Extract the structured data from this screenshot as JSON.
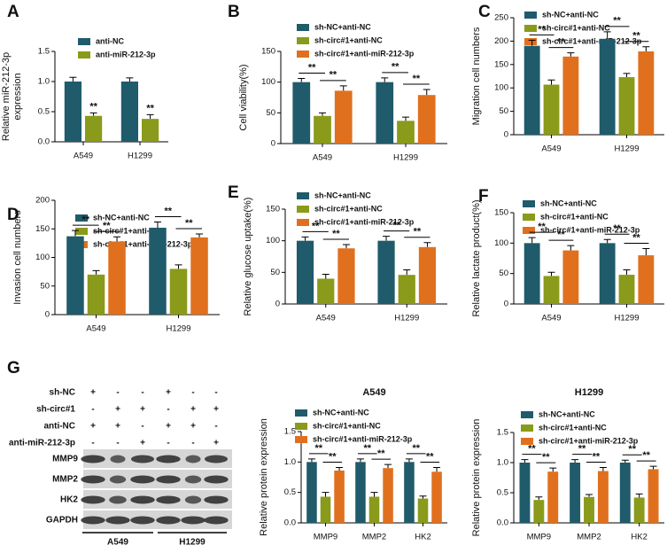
{
  "chart_data": [
    {
      "type": "bar",
      "panel_label": "A",
      "y_label": [
        "Relative miR-212-3p",
        "expression"
      ],
      "categories": [
        "A549",
        "H1299"
      ],
      "series": [
        {
          "name": "anti-NC",
          "color": "#1f5b6b",
          "values": [
            1.0,
            1.0
          ],
          "errors": [
            0.07,
            0.06
          ]
        },
        {
          "name": "anti-miR-212-3p",
          "color": "#8a9a1a",
          "values": [
            0.43,
            0.38
          ],
          "errors": [
            0.05,
            0.07
          ]
        }
      ],
      "ylim": [
        0,
        1.5
      ],
      "yticks": [
        {
          "value": 0,
          "label": "0.0"
        },
        {
          "value": 0.5,
          "label": "0.5"
        },
        {
          "value": 1,
          "label": "1.0"
        },
        {
          "value": 1.5,
          "label": "1.5"
        }
      ],
      "significance": [
        [
          "**"
        ],
        [
          "**"
        ]
      ]
    },
    {
      "type": "bar",
      "panel_label": "B",
      "y_label": [
        "Cell viability(%)"
      ],
      "categories": [
        "A549",
        "H1299"
      ],
      "series": [
        {
          "name": "sh-NC+anti-NC",
          "color": "#1f5b6b",
          "values": [
            100,
            100
          ],
          "errors": [
            6,
            7
          ]
        },
        {
          "name": "sh-circ#1+anti-NC",
          "color": "#8a9a1a",
          "values": [
            45,
            37
          ],
          "errors": [
            5,
            6
          ]
        },
        {
          "name": "sh-circ#1+anti-miR-212-3p",
          "color": "#e0701e",
          "values": [
            86,
            79
          ],
          "errors": [
            8,
            9
          ]
        }
      ],
      "ylim": [
        0,
        150
      ],
      "yticks": [
        0,
        50,
        100,
        150
      ],
      "significance": [
        [
          "**",
          "**"
        ],
        [
          "**",
          "**"
        ]
      ]
    },
    {
      "type": "bar",
      "panel_label": "C",
      "y_label": [
        "Migration cell numbers"
      ],
      "categories": [
        "A549",
        "H1299"
      ],
      "series": [
        {
          "name": "sh-NC+anti-NC",
          "color": "#1f5b6b",
          "values": [
            190,
            205
          ],
          "errors": [
            12,
            15
          ]
        },
        {
          "name": "sh-circ#1+anti-NC",
          "color": "#8a9a1a",
          "values": [
            107,
            123
          ],
          "errors": [
            10,
            8
          ]
        },
        {
          "name": "sh-circ#1+anti-miR-212-3p",
          "color": "#e0701e",
          "values": [
            167,
            178
          ],
          "errors": [
            8,
            10
          ]
        }
      ],
      "ylim": [
        0,
        250
      ],
      "yticks": [
        0,
        50,
        100,
        150,
        200,
        250
      ],
      "significance": [
        [
          "**",
          "**"
        ],
        [
          "**",
          "**"
        ]
      ]
    },
    {
      "type": "bar",
      "panel_label": "D",
      "y_label": [
        "Invasion cell numbers"
      ],
      "categories": [
        "A549",
        "H1299"
      ],
      "series": [
        {
          "name": "sh-NC+anti-NC",
          "color": "#1f5b6b",
          "values": [
            137,
            152
          ],
          "errors": [
            10,
            10
          ]
        },
        {
          "name": "sh-circ#1+anti-NC",
          "color": "#8a9a1a",
          "values": [
            70,
            80
          ],
          "errors": [
            7,
            7
          ]
        },
        {
          "name": "sh-circ#1+anti-miR-212-3p",
          "color": "#e0701e",
          "values": [
            128,
            135
          ],
          "errors": [
            8,
            6
          ]
        }
      ],
      "ylim": [
        0,
        200
      ],
      "yticks": [
        0,
        50,
        100,
        150,
        200
      ],
      "significance": [
        [
          "**",
          "**"
        ],
        [
          "**",
          "**"
        ]
      ]
    },
    {
      "type": "bar",
      "panel_label": "E",
      "y_label": [
        "Relative glucose uptake(%)"
      ],
      "categories": [
        "A549",
        "H1299"
      ],
      "series": [
        {
          "name": "sh-NC+anti-NC",
          "color": "#1f5b6b",
          "values": [
            100,
            100
          ],
          "errors": [
            6,
            7
          ]
        },
        {
          "name": "sh-circ#1+anti-NC",
          "color": "#8a9a1a",
          "values": [
            40,
            46
          ],
          "errors": [
            7,
            8
          ]
        },
        {
          "name": "sh-circ#1+anti-miR-212-3p",
          "color": "#e0701e",
          "values": [
            88,
            90
          ],
          "errors": [
            6,
            7
          ]
        }
      ],
      "ylim": [
        0,
        150
      ],
      "yticks": [
        0,
        50,
        100,
        150
      ],
      "significance": [
        [
          "**",
          "**"
        ],
        [
          "**",
          "**"
        ]
      ]
    },
    {
      "type": "bar",
      "panel_label": "F",
      "y_label": [
        "Relative lactate product(%)"
      ],
      "categories": [
        "A549",
        "H1299"
      ],
      "series": [
        {
          "name": "sh-NC+anti-NC",
          "color": "#1f5b6b",
          "values": [
            100,
            100
          ],
          "errors": [
            9,
            6
          ]
        },
        {
          "name": "sh-circ#1+anti-NC",
          "color": "#8a9a1a",
          "values": [
            46,
            48
          ],
          "errors": [
            6,
            8
          ]
        },
        {
          "name": "sh-circ#1+anti-miR-212-3p",
          "color": "#e0701e",
          "values": [
            88,
            80
          ],
          "errors": [
            8,
            11
          ]
        }
      ],
      "ylim": [
        0,
        150
      ],
      "yticks": [
        0,
        50,
        100,
        150
      ],
      "significance": [
        [
          "**",
          "**"
        ],
        [
          "**",
          "**"
        ]
      ]
    },
    {
      "type": "bar",
      "title": "A549",
      "y_label": [
        "Relative protein expression"
      ],
      "categories": [
        "MMP9",
        "MMP2",
        "HK2"
      ],
      "series": [
        {
          "name": "sh-NC+anti-NC",
          "color": "#1f5b6b",
          "values": [
            1.0,
            1.0,
            1.0
          ],
          "errors": [
            0.05,
            0.05,
            0.05
          ]
        },
        {
          "name": "sh-circ#1+anti-NC",
          "color": "#8a9a1a",
          "values": [
            0.43,
            0.43,
            0.4
          ],
          "errors": [
            0.07,
            0.07,
            0.04
          ]
        },
        {
          "name": "sh-circ#1+anti-miR-212-3p",
          "color": "#e0701e",
          "values": [
            0.86,
            0.9,
            0.84
          ],
          "errors": [
            0.05,
            0.06,
            0.07
          ]
        }
      ],
      "ylim": [
        0,
        1.5
      ],
      "yticks": [
        {
          "value": 0,
          "label": "0.0"
        },
        {
          "value": 0.5,
          "label": "0.5"
        },
        {
          "value": 1,
          "label": "1.0"
        },
        {
          "value": 1.5,
          "label": "1.5"
        }
      ],
      "significance": [
        [
          "**",
          "**"
        ],
        [
          "**",
          "**"
        ],
        [
          "**",
          "**"
        ]
      ]
    },
    {
      "type": "bar",
      "title": "H1299",
      "y_label": [
        "Relative protein expression"
      ],
      "categories": [
        "MMP9",
        "MMP2",
        "HK2"
      ],
      "series": [
        {
          "name": "sh-NC+anti-NC",
          "color": "#1f5b6b",
          "values": [
            1.0,
            1.0,
            1.0
          ],
          "errors": [
            0.05,
            0.05,
            0.04
          ]
        },
        {
          "name": "sh-circ#1+anti-NC",
          "color": "#8a9a1a",
          "values": [
            0.38,
            0.43,
            0.42
          ],
          "errors": [
            0.05,
            0.04,
            0.06
          ]
        },
        {
          "name": "sh-circ#1+anti-miR-212-3p",
          "color": "#e0701e",
          "values": [
            0.85,
            0.86,
            0.89
          ],
          "errors": [
            0.06,
            0.06,
            0.05
          ]
        }
      ],
      "ylim": [
        0,
        1.5
      ],
      "yticks": [
        {
          "value": 0,
          "label": "0.0"
        },
        {
          "value": 0.5,
          "label": "0.5"
        },
        {
          "value": 1,
          "label": "1.0"
        },
        {
          "value": 1.5,
          "label": "1.5"
        }
      ],
      "significance": [
        [
          "**",
          "**"
        ],
        [
          "**",
          "**"
        ],
        [
          "**",
          "**"
        ]
      ]
    }
  ],
  "blot": {
    "panel_label": "G",
    "treatments": [
      {
        "label": "sh-NC",
        "signs": [
          "+",
          "-",
          "-",
          "+",
          "-",
          "-"
        ]
      },
      {
        "label": "sh-circ#1",
        "signs": [
          "-",
          "+",
          "+",
          "-",
          "+",
          "+"
        ]
      },
      {
        "label": "anti-NC",
        "signs": [
          "+",
          "+",
          "-",
          "+",
          "+",
          "-"
        ]
      },
      {
        "label": "anti-miR-212-3p",
        "signs": [
          "-",
          "-",
          "+",
          "-",
          "-",
          "+"
        ]
      }
    ],
    "bands": [
      "MMP9",
      "MMP2",
      "HK2",
      "GAPDH"
    ],
    "cell_lines": [
      "A549",
      "H1299"
    ]
  }
}
